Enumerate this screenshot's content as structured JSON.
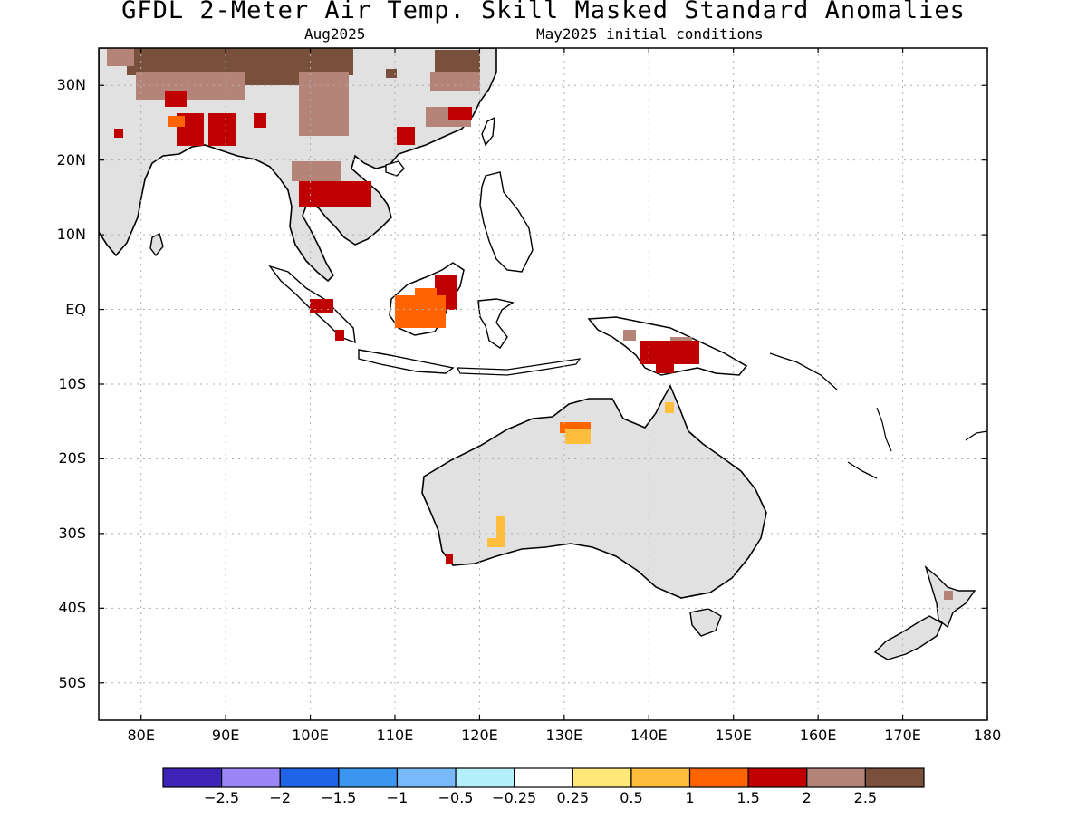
{
  "title": "GFDL 2-Meter Air Temp. Skill Masked Standard Anomalies",
  "subtitle_left": "Aug2025",
  "subtitle_right": "May2025 initial conditions",
  "map": {
    "lon_range": [
      75,
      180
    ],
    "lat_range": [
      -55,
      35
    ],
    "lat_ticks": [
      {
        "value": 30,
        "label": "30N"
      },
      {
        "value": 20,
        "label": "20N"
      },
      {
        "value": 10,
        "label": "10N"
      },
      {
        "value": 0,
        "label": "EQ"
      },
      {
        "value": -10,
        "label": "10S"
      },
      {
        "value": -20,
        "label": "20S"
      },
      {
        "value": -30,
        "label": "30S"
      },
      {
        "value": -40,
        "label": "40S"
      },
      {
        "value": -50,
        "label": "50S"
      }
    ],
    "lon_ticks": [
      {
        "value": 80,
        "label": "80E"
      },
      {
        "value": 90,
        "label": "90E"
      },
      {
        "value": 100,
        "label": "100E"
      },
      {
        "value": 110,
        "label": "110E"
      },
      {
        "value": 120,
        "label": "120E"
      },
      {
        "value": 130,
        "label": "130E"
      },
      {
        "value": 140,
        "label": "140E"
      },
      {
        "value": 150,
        "label": "150E"
      },
      {
        "value": 160,
        "label": "160E"
      },
      {
        "value": 170,
        "label": "170E"
      },
      {
        "value": 180,
        "label": "180"
      }
    ],
    "colors": {
      "land_masked": "#e1e1e1",
      "coast": "#000000",
      "grid": "#b0b0b0"
    }
  },
  "colorbar": {
    "colors": [
      "#3d23b8",
      "#9a87f5",
      "#1f64e6",
      "#3c96f0",
      "#78b9fa",
      "#b4f0fa",
      "#ffffff",
      "#ffe878",
      "#ffbe3c",
      "#ff6400",
      "#c00000",
      "#b48478",
      "#78503c"
    ],
    "labels": [
      "−2.5",
      "−2",
      "−1.5",
      "−1",
      "−0.5",
      "−0.25",
      "0.25",
      "0.5",
      "1",
      "1.5",
      "2",
      "2.5"
    ]
  }
}
